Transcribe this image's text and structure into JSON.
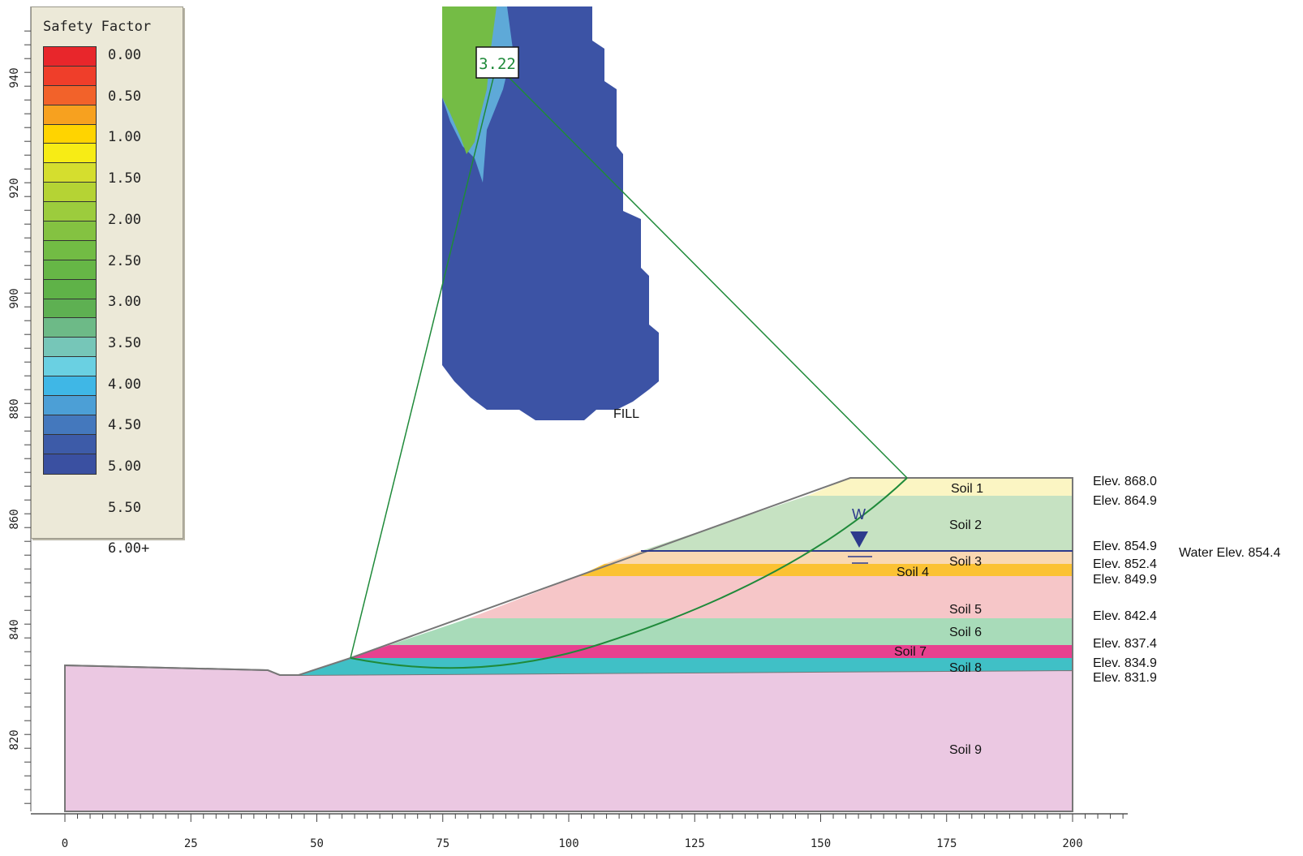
{
  "legend": {
    "title": "Safety Factor",
    "labels": [
      "0.00",
      "0.50",
      "1.00",
      "1.50",
      "2.00",
      "2.50",
      "3.00",
      "3.50",
      "4.00",
      "4.50",
      "5.00",
      "5.50",
      "6.00+"
    ],
    "colors": [
      "#e8262b",
      "#ef3e2a",
      "#f2622a",
      "#f7a11f",
      "#ffd400",
      "#f7ec15",
      "#d5de2e",
      "#b5d334",
      "#9ccc3d",
      "#84c241",
      "#72bc44",
      "#66b646",
      "#5fb248",
      "#5eb052",
      "#6dba87",
      "#76c6b8",
      "#6ad0e2",
      "#3fb7e6",
      "#4c9fd6",
      "#4478bd",
      "#3d5ba8",
      "#3a50a1"
    ]
  },
  "axes": {
    "x_ticks": [
      "0",
      "25",
      "50",
      "75",
      "100",
      "125",
      "150",
      "175",
      "200"
    ],
    "y_ticks": [
      "820",
      "840",
      "860",
      "880",
      "900",
      "920",
      "940"
    ]
  },
  "slope": {
    "min_fs_label": "3.22",
    "fill_label": "FILL",
    "water_marker": "W",
    "soils": [
      "Soil 1",
      "Soil 2",
      "Soil 3",
      "Soil 4",
      "Soil 5",
      "Soil 6",
      "Soil 7",
      "Soil 8",
      "Soil 9"
    ],
    "elevations": [
      "Elev. 868.0",
      "Elev. 864.9",
      "Elev. 854.9",
      "Elev. 852.4",
      "Elev. 849.9",
      "Elev. 842.4",
      "Elev. 837.4",
      "Elev. 834.9",
      "Elev. 831.9"
    ],
    "water_elevation": "Water Elev. 854.4",
    "colors": {
      "soil1": "#fbf5c3",
      "soil2": "#c6e2c2",
      "soil3": "#f9d8b2",
      "soil4": "#fbc233",
      "soil5": "#f6c6c8",
      "soil6": "#a8dbb9",
      "soil7": "#e8418f",
      "soil8": "#40c0c6",
      "soil9": "#ebc8e2",
      "grid_blue": "#3c53a5",
      "grid_green": "#74bc45",
      "slip_circle": "#1f8a3a"
    }
  }
}
